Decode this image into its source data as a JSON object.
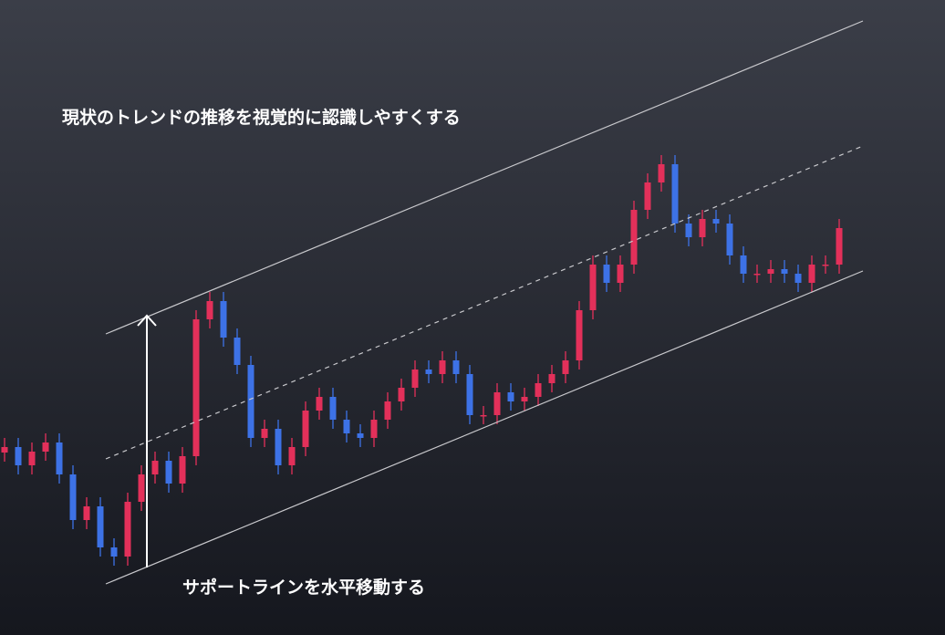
{
  "chart_data": {
    "type": "candlestick",
    "annotations": [
      "現状のトレンドの推移を視覚的に認識しやすくする",
      "サポートラインを水平移動する"
    ],
    "ylim": [
      0,
      696
    ],
    "up_color": "#e3305a",
    "down_color": "#3d72e6",
    "open": [
      200,
      206,
      186,
      201,
      211,
      176,
      126,
      141,
      96,
      86,
      146,
      176,
      191,
      166,
      196,
      346,
      366,
      326,
      296,
      216,
      226,
      186,
      206,
      246,
      261,
      236,
      221,
      216,
      236,
      256,
      271,
      291,
      286,
      301,
      286,
      241,
      241,
      266,
      256,
      261,
      276,
      286,
      301,
      356,
      406,
      386,
      406,
      466,
      496,
      516,
      451,
      436,
      456,
      451,
      416,
      396,
      396,
      401,
      396,
      386,
      406,
      406
    ],
    "high": [
      216,
      216,
      211,
      221,
      221,
      186,
      151,
      151,
      106,
      156,
      186,
      201,
      201,
      206,
      356,
      376,
      376,
      336,
      306,
      236,
      236,
      216,
      256,
      271,
      271,
      246,
      231,
      246,
      266,
      281,
      301,
      301,
      311,
      311,
      296,
      251,
      276,
      276,
      271,
      286,
      296,
      311,
      366,
      416,
      416,
      416,
      476,
      506,
      526,
      526,
      461,
      466,
      466,
      461,
      426,
      406,
      411,
      411,
      406,
      416,
      416,
      456
    ],
    "low": [
      190,
      176,
      176,
      191,
      166,
      116,
      116,
      86,
      76,
      76,
      136,
      166,
      156,
      156,
      186,
      336,
      316,
      286,
      206,
      206,
      176,
      176,
      196,
      236,
      226,
      211,
      206,
      206,
      226,
      246,
      261,
      276,
      276,
      276,
      231,
      231,
      231,
      246,
      246,
      251,
      266,
      276,
      291,
      346,
      376,
      376,
      396,
      456,
      486,
      441,
      426,
      426,
      441,
      406,
      386,
      386,
      386,
      386,
      376,
      376,
      396,
      396
    ],
    "close": [
      206,
      186,
      201,
      211,
      176,
      126,
      141,
      96,
      86,
      146,
      176,
      191,
      166,
      196,
      346,
      366,
      326,
      296,
      216,
      226,
      186,
      206,
      246,
      261,
      236,
      221,
      216,
      236,
      256,
      271,
      291,
      286,
      301,
      286,
      241,
      241,
      266,
      256,
      261,
      276,
      286,
      301,
      356,
      406,
      386,
      406,
      466,
      496,
      516,
      451,
      436,
      456,
      451,
      416,
      396,
      396,
      401,
      396,
      386,
      406,
      406,
      446
    ]
  }
}
